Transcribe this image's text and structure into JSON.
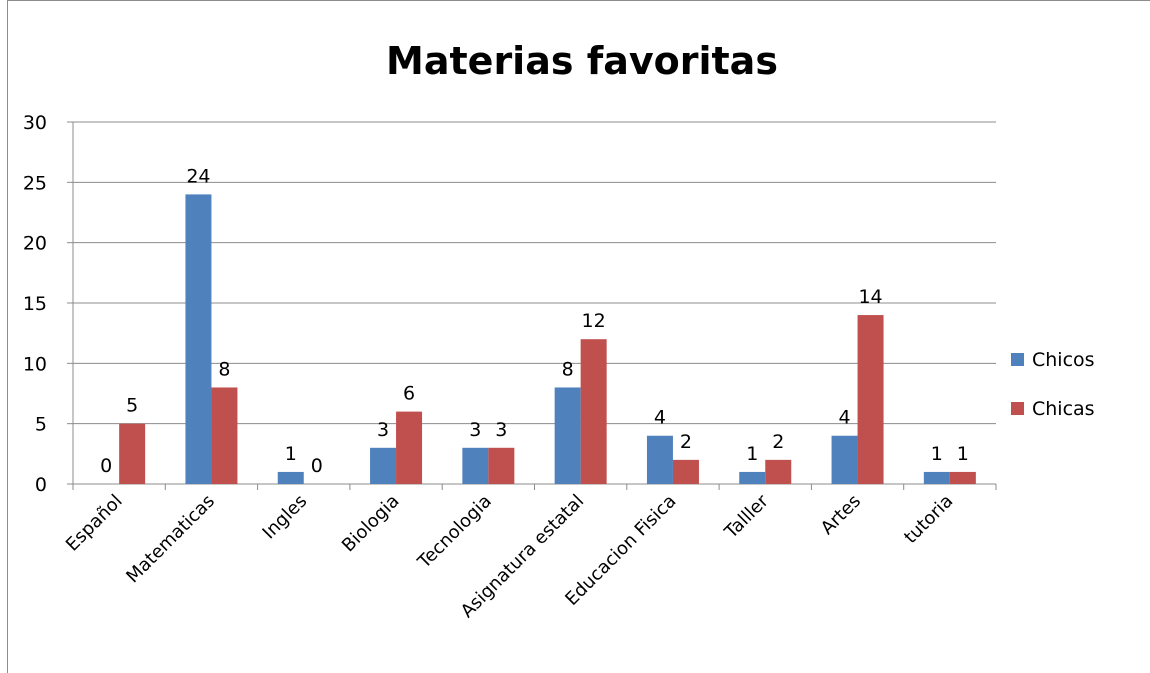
{
  "chart_data": {
    "type": "bar",
    "title": "Materias favoritas",
    "xlabel": "",
    "ylabel": "",
    "categories": [
      "Español",
      "Matematicas",
      "Ingles",
      "Biologia",
      "Tecnologia",
      "Asignatura estatal",
      "Educacion Fisica",
      "Talller",
      "Artes",
      "tutoria"
    ],
    "series": [
      {
        "name": "Chicos",
        "values": [
          0,
          24,
          1,
          3,
          3,
          8,
          4,
          1,
          4,
          1
        ],
        "color": "#4f81bd"
      },
      {
        "name": "Chicas",
        "values": [
          5,
          8,
          0,
          6,
          3,
          12,
          2,
          2,
          14,
          1
        ],
        "color": "#c0504d"
      }
    ],
    "ylim": [
      0,
      30
    ],
    "yticks": [
      "0",
      "5",
      "10",
      "15",
      "20",
      "25",
      "30"
    ],
    "grid": true,
    "legend_position": "right",
    "data_labels": true
  }
}
